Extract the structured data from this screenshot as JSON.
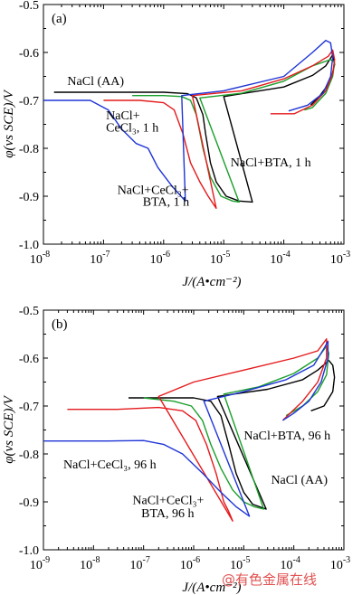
{
  "watermark": "@有色金属在线",
  "colors": {
    "black": "#000000",
    "red": "#e41a1c",
    "green": "#1a9e2a",
    "blue": "#1f35d6"
  },
  "chart_data": [
    {
      "type": "line",
      "panel_label": "(a)",
      "xlabel": "J/(A•cm⁻²)",
      "ylabel": "φ(vs SCE)/V",
      "x_scale": "log",
      "xlim": [
        1e-08,
        0.001
      ],
      "ylim": [
        -1.0,
        -0.5
      ],
      "xticks": [
        1e-08,
        1e-07,
        1e-06,
        1e-05,
        0.0001,
        0.001
      ],
      "xtick_labels": [
        [
          "10",
          "-8"
        ],
        [
          "10",
          "-7"
        ],
        [
          "10",
          "-6"
        ],
        [
          "10",
          "-5"
        ],
        [
          "10",
          "-4"
        ],
        [
          "10",
          "-3"
        ]
      ],
      "yticks": [
        -1.0,
        -0.9,
        -0.8,
        -0.7,
        -0.6,
        -0.5
      ],
      "ytick_labels": [
        "-1.0",
        "-0.9",
        "-0.8",
        "-0.7",
        "-0.6",
        "-0.5"
      ],
      "annotations": [
        {
          "text": "NaCl (AA)",
          "x": 2.5e-08,
          "y": -0.668
        },
        {
          "text": "NaCl+",
          "x": 1.1e-07,
          "y": -0.74
        },
        {
          "text": "CeCl₃, 1 h",
          "x": 1.1e-07,
          "y": -0.765
        },
        {
          "text": "NaCl+BTA, 1 h",
          "x": 1.3e-05,
          "y": -0.838
        },
        {
          "text": "NaCl+CeCl₃+",
          "x": 1.7e-07,
          "y": -0.895
        },
        {
          "text": "BTA, 1 h",
          "x": 4.5e-07,
          "y": -0.92
        }
      ],
      "series": [
        {
          "color": "black",
          "points": [
            [
              1.5e-08,
              -0.683
            ],
            [
              1e-07,
              -0.683
            ],
            [
              1e-06,
              -0.683
            ],
            [
              2.5e-06,
              -0.686
            ],
            [
              3.5e-06,
              -0.695
            ],
            [
              4.5e-06,
              -0.73
            ],
            [
              5e-06,
              -0.77
            ],
            [
              6e-06,
              -0.83
            ],
            [
              7.5e-06,
              -0.87
            ],
            [
              1.1e-05,
              -0.9
            ],
            [
              1.8e-05,
              -0.91
            ],
            [
              3e-05,
              -0.912
            ],
            [
              1e-05,
              -0.692
            ],
            [
              0.0001,
              -0.672
            ],
            [
              0.0003,
              -0.648
            ],
            [
              0.0005,
              -0.628
            ],
            [
              0.00065,
              -0.605
            ],
            [
              0.0007,
              -0.625
            ],
            [
              0.0006,
              -0.66
            ],
            [
              0.0004,
              -0.69
            ],
            [
              0.00028,
              -0.71
            ]
          ]
        },
        {
          "color": "green",
          "points": [
            [
              3e-07,
              -0.69
            ],
            [
              1e-06,
              -0.69
            ],
            [
              2e-06,
              -0.692
            ],
            [
              2.8e-06,
              -0.7
            ],
            [
              3.5e-06,
              -0.73
            ],
            [
              4.5e-06,
              -0.8
            ],
            [
              6e-06,
              -0.86
            ],
            [
              9e-06,
              -0.9
            ],
            [
              1.4e-05,
              -0.91
            ],
            [
              1.8e-05,
              -0.912
            ],
            [
              4e-06,
              -0.695
            ],
            [
              2e-05,
              -0.685
            ],
            [
              0.0001,
              -0.66
            ],
            [
              0.0003,
              -0.628
            ],
            [
              0.0006,
              -0.615
            ],
            [
              0.0007,
              -0.62
            ],
            [
              0.00065,
              -0.65
            ],
            [
              0.0005,
              -0.685
            ],
            [
              0.0003,
              -0.715
            ],
            [
              0.00022,
              -0.72
            ]
          ]
        },
        {
          "color": "red",
          "points": [
            [
              1e-07,
              -0.7
            ],
            [
              4e-07,
              -0.7
            ],
            [
              1e-06,
              -0.705
            ],
            [
              1.5e-06,
              -0.72
            ],
            [
              2.1e-06,
              -0.77
            ],
            [
              2.8e-06,
              -0.83
            ],
            [
              4e-06,
              -0.87
            ],
            [
              5.5e-06,
              -0.9
            ],
            [
              7.5e-06,
              -0.925
            ],
            [
              3e-06,
              -0.69
            ],
            [
              2e-05,
              -0.68
            ],
            [
              0.0001,
              -0.655
            ],
            [
              0.0003,
              -0.628
            ],
            [
              0.00055,
              -0.608
            ],
            [
              0.00065,
              -0.595
            ],
            [
              0.0007,
              -0.615
            ],
            [
              0.00065,
              -0.645
            ],
            [
              0.0005,
              -0.68
            ],
            [
              0.0003,
              -0.71
            ],
            [
              0.00015,
              -0.728
            ],
            [
              6e-05,
              -0.728
            ]
          ]
        },
        {
          "color": "blue",
          "points": [
            [
              1e-08,
              -0.7
            ],
            [
              6e-08,
              -0.7
            ],
            [
              1.2e-07,
              -0.72
            ],
            [
              2e-07,
              -0.76
            ],
            [
              3.5e-07,
              -0.79
            ],
            [
              5.5e-07,
              -0.8
            ],
            [
              8e-07,
              -0.84
            ],
            [
              1.4e-06,
              -0.88
            ],
            [
              2.3e-06,
              -0.91
            ],
            [
              2e-06,
              -0.69
            ],
            [
              1e-05,
              -0.68
            ],
            [
              0.0001,
              -0.65
            ],
            [
              0.0003,
              -0.6
            ],
            [
              0.0005,
              -0.575
            ],
            [
              0.0006,
              -0.58
            ],
            [
              0.00065,
              -0.61
            ],
            [
              0.0006,
              -0.65
            ],
            [
              0.00045,
              -0.685
            ],
            [
              0.00025,
              -0.71
            ],
            [
              0.00012,
              -0.722
            ]
          ]
        }
      ]
    },
    {
      "type": "line",
      "panel_label": "(b)",
      "xlabel": "J/(A•cm⁻²)",
      "ylabel": "φ(vs SCE)/V",
      "x_scale": "log",
      "xlim": [
        1e-09,
        0.001
      ],
      "ylim": [
        -1.0,
        -0.5
      ],
      "xticks": [
        1e-09,
        1e-08,
        1e-07,
        1e-06,
        1e-05,
        0.0001,
        0.001
      ],
      "xtick_labels": [
        [
          "10",
          "-9"
        ],
        [
          "10",
          "-8"
        ],
        [
          "10",
          "-7"
        ],
        [
          "10",
          "-6"
        ],
        [
          "10",
          "-5"
        ],
        [
          "10",
          "-4"
        ],
        [
          "10",
          "-3"
        ]
      ],
      "yticks": [
        -1.0,
        -0.9,
        -0.8,
        -0.7,
        -0.6,
        -0.5
      ],
      "ytick_labels": [
        "-1.0",
        "-0.9",
        "-0.8",
        "-0.7",
        "-0.6",
        "-0.5"
      ],
      "annotations": [
        {
          "text": "NaCl+BTA, 96 h",
          "x": 1e-05,
          "y": -0.77
        },
        {
          "text": "NaCl+CeCl₃, 96 h",
          "x": 2.5e-09,
          "y": -0.83
        },
        {
          "text": "NaCl (AA)",
          "x": 3.5e-05,
          "y": -0.862
        },
        {
          "text": "NaCl+CeCl₃+",
          "x": 6e-08,
          "y": -0.905
        },
        {
          "text": "BTA, 96 h",
          "x": 9e-08,
          "y": -0.932
        }
      ],
      "series": [
        {
          "color": "black",
          "points": [
            [
              5e-08,
              -0.683
            ],
            [
              3e-07,
              -0.683
            ],
            [
              1e-06,
              -0.683
            ],
            [
              2.2e-06,
              -0.69
            ],
            [
              3.5e-06,
              -0.72
            ],
            [
              5e-06,
              -0.78
            ],
            [
              7e-06,
              -0.84
            ],
            [
              1e-05,
              -0.88
            ],
            [
              1.5e-05,
              -0.905
            ],
            [
              2.8e-05,
              -0.915
            ],
            [
              3e-06,
              -0.68
            ],
            [
              3e-05,
              -0.665
            ],
            [
              0.00015,
              -0.645
            ],
            [
              0.0003,
              -0.625
            ],
            [
              0.0005,
              -0.605
            ],
            [
              0.0006,
              -0.615
            ],
            [
              0.00065,
              -0.64
            ],
            [
              0.0006,
              -0.67
            ],
            [
              0.0004,
              -0.7
            ],
            [
              0.00022,
              -0.71
            ]
          ]
        },
        {
          "color": "green",
          "points": [
            [
              1e-07,
              -0.683
            ],
            [
              4e-07,
              -0.69
            ],
            [
              9e-07,
              -0.7
            ],
            [
              1.5e-06,
              -0.73
            ],
            [
              2.2e-06,
              -0.78
            ],
            [
              3.5e-06,
              -0.83
            ],
            [
              6e-06,
              -0.875
            ],
            [
              1e-05,
              -0.9
            ],
            [
              1.6e-05,
              -0.91
            ],
            [
              2.5e-05,
              -0.915
            ],
            [
              4e-06,
              -0.675
            ],
            [
              2e-05,
              -0.66
            ],
            [
              0.0001,
              -0.632
            ],
            [
              0.0003,
              -0.6
            ],
            [
              0.00045,
              -0.575
            ],
            [
              0.0005,
              -0.59
            ],
            [
              0.00045,
              -0.635
            ],
            [
              0.0003,
              -0.67
            ],
            [
              0.00015,
              -0.7
            ],
            [
              7e-05,
              -0.72
            ]
          ]
        },
        {
          "color": "red",
          "points": [
            [
              3e-09,
              -0.707
            ],
            [
              3e-08,
              -0.707
            ],
            [
              2e-07,
              -0.703
            ],
            [
              6e-07,
              -0.71
            ],
            [
              1.1e-06,
              -0.73
            ],
            [
              1.8e-06,
              -0.78
            ],
            [
              2.8e-06,
              -0.84
            ],
            [
              4e-06,
              -0.9
            ],
            [
              5e-06,
              -0.92
            ],
            [
              6e-06,
              -0.94
            ],
            [
              2e-07,
              -0.68
            ],
            [
              1e-06,
              -0.65
            ],
            [
              1e-05,
              -0.625
            ],
            [
              0.0001,
              -0.6
            ],
            [
              0.0003,
              -0.585
            ],
            [
              0.00045,
              -0.56
            ],
            [
              0.00045,
              -0.6
            ],
            [
              0.0003,
              -0.65
            ],
            [
              0.00015,
              -0.69
            ],
            [
              6e-05,
              -0.73
            ]
          ]
        },
        {
          "color": "blue",
          "points": [
            [
              1e-09,
              -0.773
            ],
            [
              2e-08,
              -0.773
            ],
            [
              1e-07,
              -0.772
            ],
            [
              2.5e-07,
              -0.78
            ],
            [
              6e-07,
              -0.8
            ],
            [
              1.5e-06,
              -0.84
            ],
            [
              3.5e-06,
              -0.88
            ],
            [
              7e-06,
              -0.91
            ],
            [
              1.3e-05,
              -0.93
            ],
            [
              1.6e-06,
              -0.69
            ],
            [
              1e-05,
              -0.67
            ],
            [
              7e-05,
              -0.645
            ],
            [
              0.00025,
              -0.615
            ],
            [
              0.0004,
              -0.58
            ],
            [
              0.00048,
              -0.565
            ],
            [
              0.00048,
              -0.6
            ],
            [
              0.00035,
              -0.65
            ],
            [
              0.0002,
              -0.69
            ],
            [
              0.0001,
              -0.715
            ],
            [
              6e-05,
              -0.73
            ]
          ]
        }
      ]
    }
  ]
}
